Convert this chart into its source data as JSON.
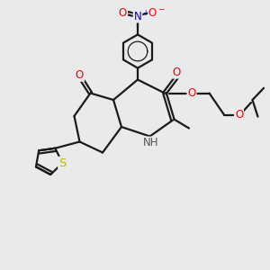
{
  "background_color": "#e8eaec",
  "bond_color": "#1a1a1a",
  "bond_width": 1.6,
  "atom_colors": {
    "O": "#ff0000",
    "N": "#0000cc",
    "S": "#b8b800",
    "H": "#555555",
    "C": "#1a1a1a"
  },
  "font_size_atom": 8.5,
  "font_size_plus": 6,
  "font_size_minus": 7
}
